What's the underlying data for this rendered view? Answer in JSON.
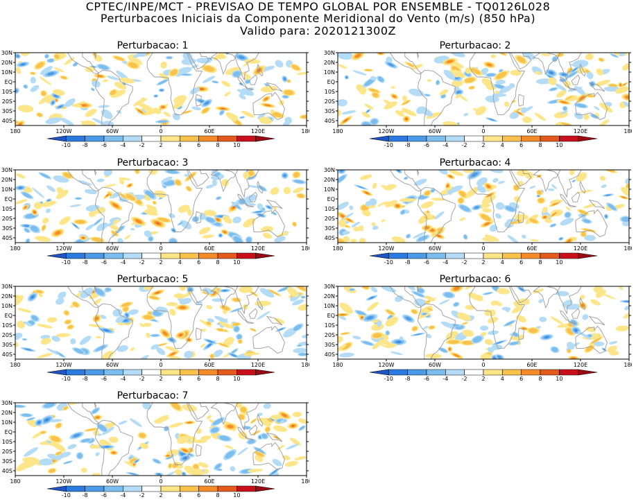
{
  "header": {
    "line1": "CPTEC/INPE/MCT - PREVISAO DE TEMPO GLOBAL POR ENSEMBLE - TQ0126L028",
    "line2": "Perturbacoes Iniciais da Componente Meridional do Vento (m/s) (850 hPa)",
    "line3": "Valido para: 2020121300Z"
  },
  "panels": [
    {
      "title": "Perturbacao: 1"
    },
    {
      "title": "Perturbacao: 2"
    },
    {
      "title": "Perturbacao: 3"
    },
    {
      "title": "Perturbacao: 4"
    },
    {
      "title": "Perturbacao: 5"
    },
    {
      "title": "Perturbacao: 6"
    },
    {
      "title": "Perturbacao: 7"
    }
  ],
  "lat_labels": [
    "30N",
    "20N",
    "10N",
    "EQ",
    "10S",
    "20S",
    "30S",
    "40S"
  ],
  "lon_labels": [
    "180",
    "120W",
    "60W",
    "0",
    "60E",
    "120E",
    "180"
  ],
  "colorbar": {
    "ticks": [
      "-10",
      "-8",
      "-6",
      "-4",
      "-2",
      "2",
      "4",
      "6",
      "8",
      "10"
    ],
    "colors": [
      "#1e56c8",
      "#2a7ae0",
      "#4a9ae8",
      "#7cbdf0",
      "#b4dcf6",
      "#ffffff",
      "#fde68a",
      "#f9c24c",
      "#f48a28",
      "#e45a1c",
      "#c8101a",
      "#9c0a12"
    ]
  },
  "palette": {
    "land_outline": "#9a9a9a",
    "frame": "#000000"
  }
}
